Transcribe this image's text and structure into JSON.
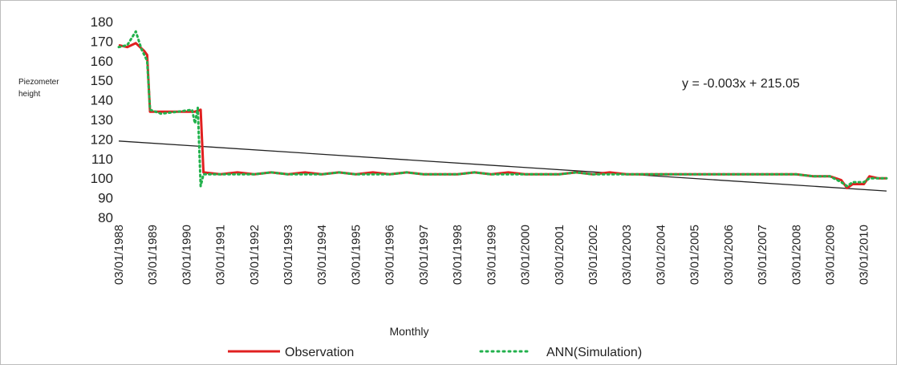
{
  "chart_data": {
    "type": "line",
    "title": "",
    "xlabel": "Monthly",
    "ylabel": "Piezometer height",
    "ylim": [
      80,
      180
    ],
    "yticks": [
      80,
      90,
      100,
      110,
      120,
      130,
      140,
      150,
      160,
      170,
      180
    ],
    "xlim": [
      "1988-03-01",
      "2010-11-01"
    ],
    "x_tick_labels": [
      "03/01/1988",
      "03/01/1989",
      "03/01/1990",
      "03/01/1991",
      "03/01/1992",
      "03/01/1993",
      "03/01/1994",
      "03/01/1995",
      "03/01/1996",
      "03/01/1997",
      "03/01/1998",
      "03/01/1999",
      "03/01/2000",
      "03/01/2001",
      "03/01/2002",
      "03/01/2003",
      "03/01/2004",
      "03/01/2005",
      "03/01/2006",
      "03/01/2007",
      "03/01/2008",
      "03/01/2009",
      "03/01/2010"
    ],
    "grid": false,
    "legend": "bottom",
    "annotation": "y = -0.003x + 215.05",
    "series": [
      {
        "name": "Observation",
        "color": "#e02020",
        "style": "solid",
        "points": [
          [
            "1988-03-01",
            168
          ],
          [
            "1988-06-01",
            167
          ],
          [
            "1988-09-01",
            169
          ],
          [
            "1988-12-01",
            165
          ],
          [
            "1989-01-01",
            163
          ],
          [
            "1989-02-01",
            134
          ],
          [
            "1989-06-01",
            134
          ],
          [
            "1989-12-01",
            134
          ],
          [
            "1990-06-01",
            134
          ],
          [
            "1990-08-01",
            135
          ],
          [
            "1990-09-01",
            103
          ],
          [
            "1991-03-01",
            102
          ],
          [
            "1991-09-01",
            103
          ],
          [
            "1992-03-01",
            102
          ],
          [
            "1992-09-01",
            103
          ],
          [
            "1993-03-01",
            102
          ],
          [
            "1993-09-01",
            103
          ],
          [
            "1994-03-01",
            102
          ],
          [
            "1994-09-01",
            103
          ],
          [
            "1995-03-01",
            102
          ],
          [
            "1995-09-01",
            103
          ],
          [
            "1996-03-01",
            102
          ],
          [
            "1996-09-01",
            103
          ],
          [
            "1997-03-01",
            102
          ],
          [
            "1997-09-01",
            102
          ],
          [
            "1998-03-01",
            102
          ],
          [
            "1998-09-01",
            103
          ],
          [
            "1999-03-01",
            102
          ],
          [
            "1999-09-01",
            103
          ],
          [
            "2000-03-01",
            102
          ],
          [
            "2000-09-01",
            102
          ],
          [
            "2001-03-01",
            102
          ],
          [
            "2001-09-01",
            103
          ],
          [
            "2002-03-01",
            102
          ],
          [
            "2002-09-01",
            103
          ],
          [
            "2003-03-01",
            102
          ],
          [
            "2003-09-01",
            102
          ],
          [
            "2004-03-01",
            102
          ],
          [
            "2004-09-01",
            102
          ],
          [
            "2005-03-01",
            102
          ],
          [
            "2005-09-01",
            102
          ],
          [
            "2006-03-01",
            102
          ],
          [
            "2006-09-01",
            102
          ],
          [
            "2007-03-01",
            102
          ],
          [
            "2007-09-01",
            102
          ],
          [
            "2008-03-01",
            102
          ],
          [
            "2008-09-01",
            101
          ],
          [
            "2009-03-01",
            101
          ],
          [
            "2009-07-01",
            99
          ],
          [
            "2009-09-01",
            95
          ],
          [
            "2009-11-01",
            97
          ],
          [
            "2010-03-01",
            97
          ],
          [
            "2010-05-01",
            101
          ],
          [
            "2010-08-01",
            100
          ],
          [
            "2010-11-01",
            100
          ]
        ]
      },
      {
        "name": "ANN(Simulation)",
        "color": "#22b14c",
        "style": "dotted",
        "points": [
          [
            "1988-03-01",
            167
          ],
          [
            "1988-06-01",
            168
          ],
          [
            "1988-09-01",
            175
          ],
          [
            "1988-11-01",
            166
          ],
          [
            "1989-01-01",
            160
          ],
          [
            "1989-02-01",
            135
          ],
          [
            "1989-06-01",
            133
          ],
          [
            "1989-12-01",
            134
          ],
          [
            "1990-05-01",
            135
          ],
          [
            "1990-06-01",
            128
          ],
          [
            "1990-07-01",
            136
          ],
          [
            "1990-08-01",
            96
          ],
          [
            "1990-09-01",
            102
          ],
          [
            "1991-03-01",
            102
          ],
          [
            "1991-09-01",
            102
          ],
          [
            "1992-03-01",
            102
          ],
          [
            "1992-09-01",
            103
          ],
          [
            "1993-03-01",
            102
          ],
          [
            "1993-09-01",
            102
          ],
          [
            "1994-03-01",
            102
          ],
          [
            "1994-09-01",
            103
          ],
          [
            "1995-03-01",
            102
          ],
          [
            "1995-09-01",
            102
          ],
          [
            "1996-03-01",
            102
          ],
          [
            "1996-09-01",
            103
          ],
          [
            "1997-03-01",
            102
          ],
          [
            "1997-09-01",
            102
          ],
          [
            "1998-03-01",
            102
          ],
          [
            "1998-09-01",
            103
          ],
          [
            "1999-03-01",
            102
          ],
          [
            "1999-09-01",
            102
          ],
          [
            "2000-03-01",
            102
          ],
          [
            "2000-09-01",
            102
          ],
          [
            "2001-03-01",
            102
          ],
          [
            "2001-09-01",
            103
          ],
          [
            "2002-03-01",
            102
          ],
          [
            "2002-09-01",
            102
          ],
          [
            "2003-03-01",
            102
          ],
          [
            "2003-09-01",
            102
          ],
          [
            "2004-03-01",
            102
          ],
          [
            "2004-09-01",
            102
          ],
          [
            "2005-03-01",
            102
          ],
          [
            "2005-09-01",
            102
          ],
          [
            "2006-03-01",
            102
          ],
          [
            "2006-09-01",
            102
          ],
          [
            "2007-03-01",
            102
          ],
          [
            "2007-09-01",
            102
          ],
          [
            "2008-03-01",
            102
          ],
          [
            "2008-09-01",
            101
          ],
          [
            "2009-03-01",
            101
          ],
          [
            "2009-07-01",
            98
          ],
          [
            "2009-09-01",
            96
          ],
          [
            "2009-11-01",
            98
          ],
          [
            "2010-03-01",
            98
          ],
          [
            "2010-05-01",
            100
          ],
          [
            "2010-08-01",
            100
          ],
          [
            "2010-11-01",
            100
          ]
        ]
      },
      {
        "name": "",
        "color": "#222222",
        "style": "solid",
        "points": [
          [
            "1988-03-01",
            119
          ],
          [
            "2010-11-01",
            93.5
          ]
        ]
      }
    ]
  }
}
